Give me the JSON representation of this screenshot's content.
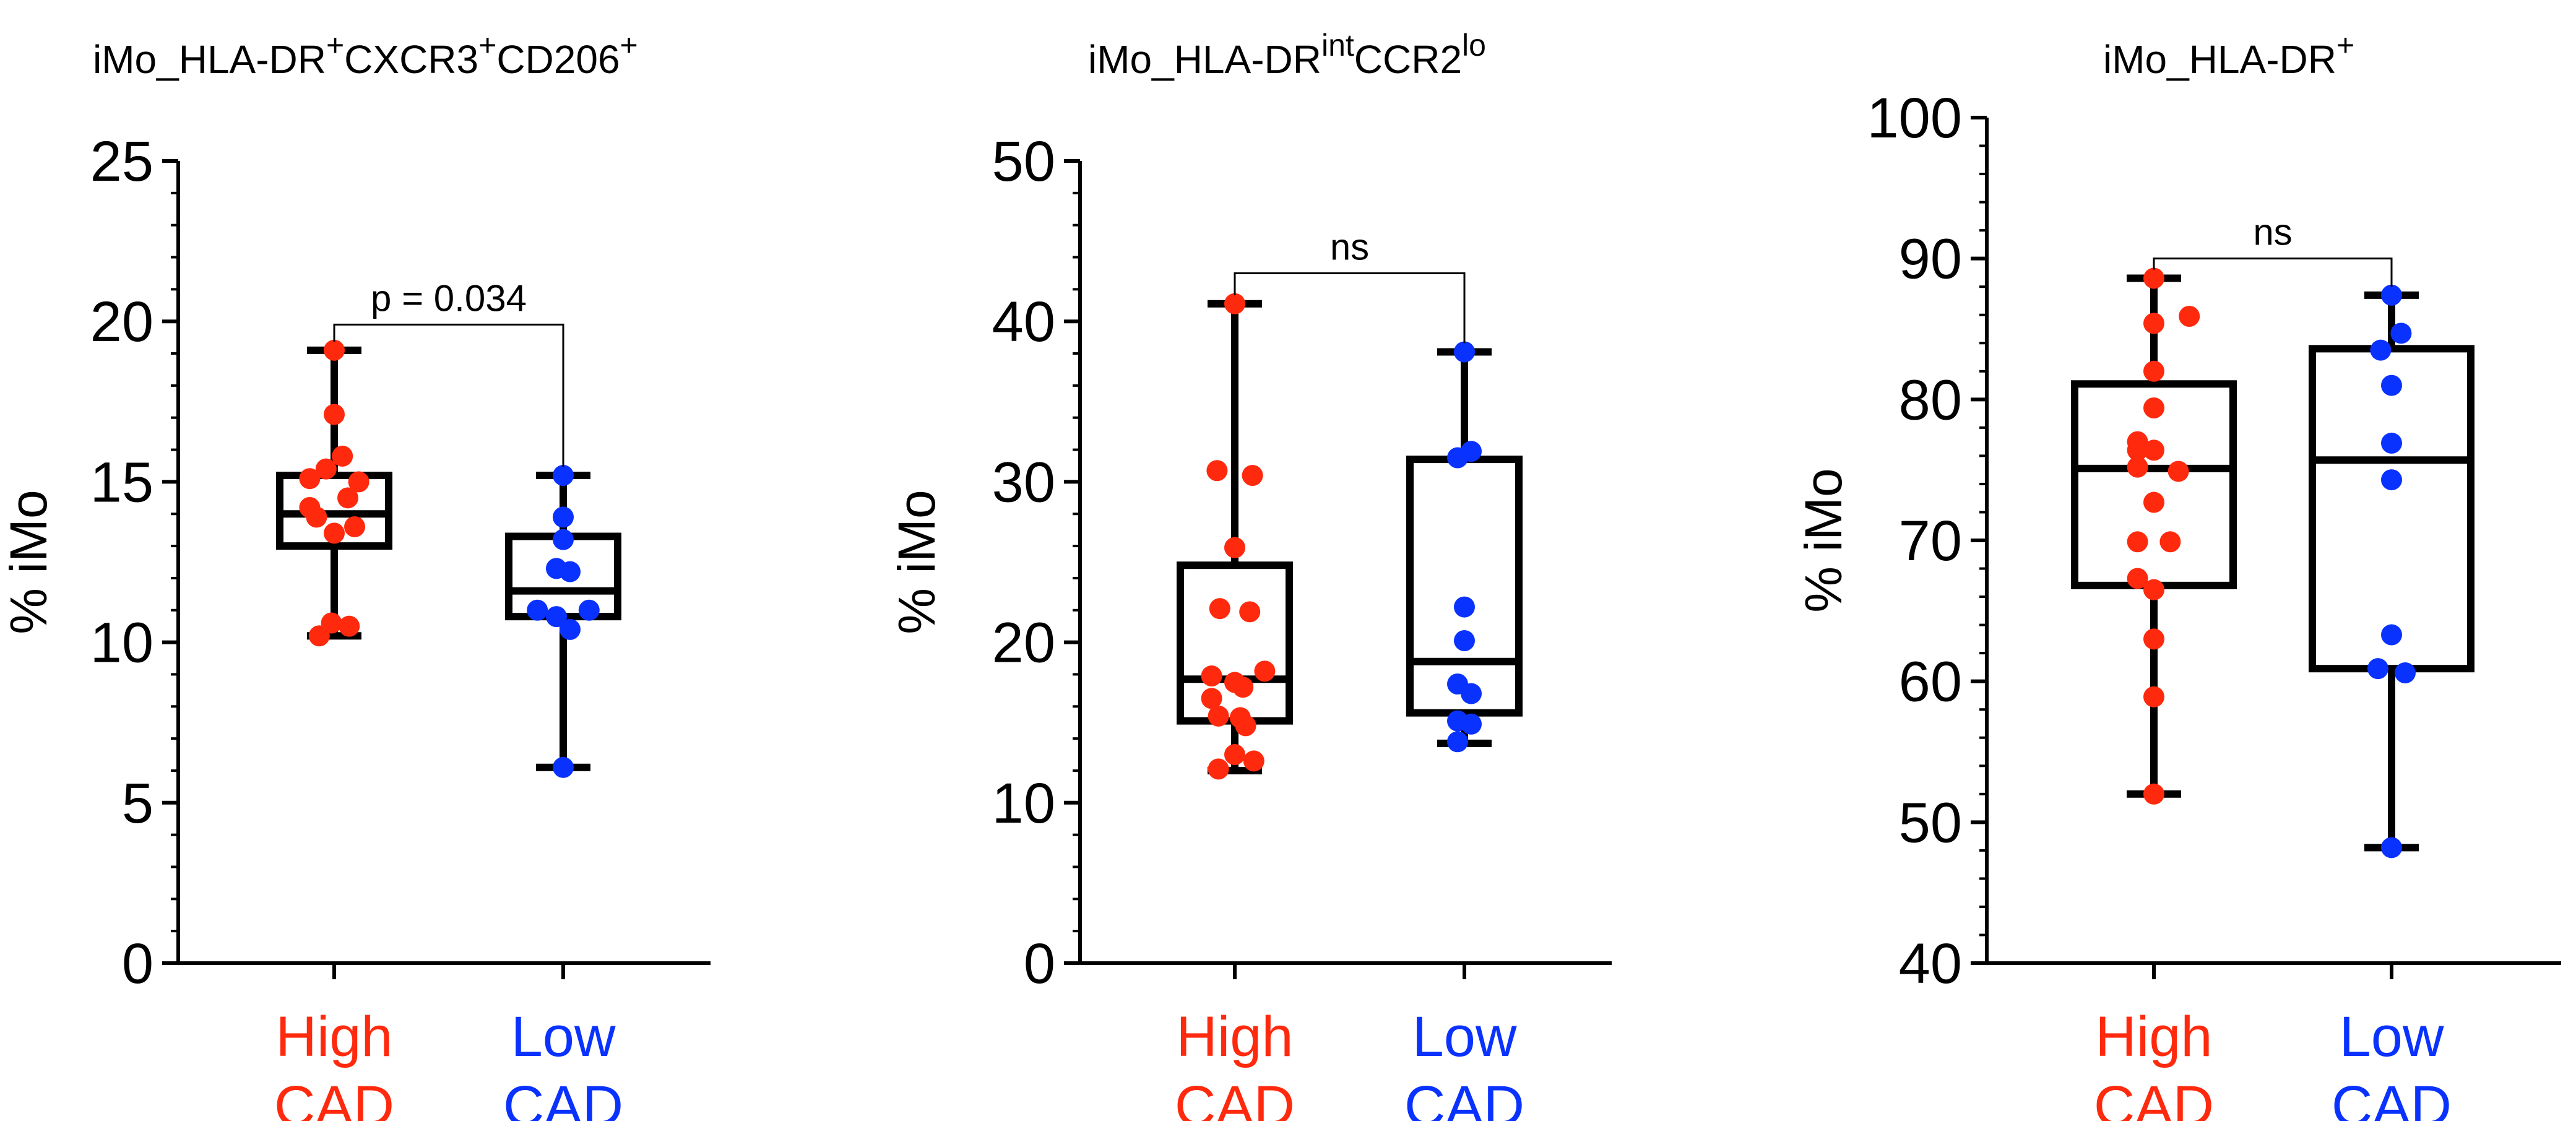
{
  "colors": {
    "high": "#ff2a0e",
    "low": "#0a32ff",
    "axis": "#000000"
  },
  "chart_data": [
    {
      "type": "box",
      "title": {
        "base": "iMo_HLA-DR",
        "parts": [
          {
            "t": "iMo_HLA-DR",
            "sup": false
          },
          {
            "t": "+",
            "sup": true
          },
          {
            "t": "CXCR3",
            "sup": false
          },
          {
            "t": "+",
            "sup": true
          },
          {
            "t": "CD206",
            "sup": false
          },
          {
            "t": "+",
            "sup": true
          }
        ]
      },
      "ylabel": "% iMo",
      "ylim": [
        0,
        25
      ],
      "yticks": [
        0,
        5,
        10,
        15,
        20,
        25
      ],
      "ytick_labels": [
        "0",
        "5",
        "10",
        "15",
        "20",
        "25"
      ],
      "minor_step": 1,
      "categories": [
        {
          "line1": "High",
          "line2": "CAD",
          "color": "high"
        },
        {
          "line1": "Low",
          "line2": "CAD",
          "color": "low"
        }
      ],
      "series": [
        {
          "name": "High CAD",
          "box": {
            "min": 10.2,
            "q1": 13.0,
            "median": 14.0,
            "q3": 15.2,
            "max": 19.1
          },
          "points": [
            [
              -0.36,
              15.1
            ],
            [
              -0.12,
              15.4
            ],
            [
              0.12,
              15.8
            ],
            [
              0.36,
              15.0
            ],
            [
              0.0,
              17.1
            ],
            [
              0.0,
              19.1
            ],
            [
              -0.36,
              14.2
            ],
            [
              0.2,
              14.5
            ],
            [
              -0.26,
              13.9
            ],
            [
              0.3,
              13.6
            ],
            [
              0.0,
              13.4
            ],
            [
              -0.22,
              10.2
            ],
            [
              0.22,
              10.5
            ],
            [
              -0.04,
              10.6
            ]
          ]
        },
        {
          "name": "Low CAD",
          "box": {
            "min": 6.1,
            "q1": 10.8,
            "median": 11.6,
            "q3": 13.3,
            "max": 15.2
          },
          "points": [
            [
              0.0,
              15.2
            ],
            [
              0.0,
              13.9
            ],
            [
              0.0,
              13.2
            ],
            [
              -0.1,
              12.3
            ],
            [
              0.1,
              12.2
            ],
            [
              -0.38,
              11.0
            ],
            [
              0.38,
              11.0
            ],
            [
              -0.1,
              10.8
            ],
            [
              0.1,
              10.4
            ],
            [
              0.0,
              6.1
            ]
          ]
        }
      ],
      "bracket": {
        "label": "p = 0.034",
        "y": 19.9
      }
    },
    {
      "type": "box",
      "title": {
        "base": "iMo_HLA-DR",
        "parts": [
          {
            "t": "iMo_HLA-DR",
            "sup": false
          },
          {
            "t": "int",
            "sup": true
          },
          {
            "t": "CCR2",
            "sup": false
          },
          {
            "t": "lo",
            "sup": true
          }
        ]
      },
      "ylabel": "% iMo",
      "ylim": [
        0,
        50
      ],
      "yticks": [
        0,
        10,
        20,
        30,
        40,
        50
      ],
      "ytick_labels": [
        "0",
        "10",
        "20",
        "30",
        "40",
        "50"
      ],
      "minor_step": 2,
      "categories": [
        {
          "line1": "High",
          "line2": "CAD",
          "color": "high"
        },
        {
          "line1": "Low",
          "line2": "CAD",
          "color": "low"
        }
      ],
      "series": [
        {
          "name": "High CAD",
          "box": {
            "min": 12.0,
            "q1": 15.1,
            "median": 17.7,
            "q3": 24.8,
            "max": 41.1
          },
          "points": [
            [
              0.0,
              41.1
            ],
            [
              -0.26,
              30.7
            ],
            [
              0.26,
              30.4
            ],
            [
              0.0,
              25.9
            ],
            [
              -0.22,
              22.1
            ],
            [
              0.22,
              21.9
            ],
            [
              -0.34,
              17.9
            ],
            [
              0.44,
              18.2
            ],
            [
              0.0,
              17.5
            ],
            [
              -0.34,
              16.5
            ],
            [
              0.12,
              17.2
            ],
            [
              -0.24,
              15.4
            ],
            [
              0.08,
              15.3
            ],
            [
              0.16,
              14.8
            ],
            [
              0.0,
              13.0
            ],
            [
              0.28,
              12.6
            ],
            [
              -0.24,
              12.1
            ]
          ]
        },
        {
          "name": "Low CAD",
          "box": {
            "min": 13.7,
            "q1": 15.6,
            "median": 18.8,
            "q3": 31.4,
            "max": 38.1
          },
          "points": [
            [
              0.0,
              38.1
            ],
            [
              -0.1,
              31.5
            ],
            [
              0.1,
              31.9
            ],
            [
              0.0,
              22.2
            ],
            [
              0.0,
              20.1
            ],
            [
              -0.1,
              17.4
            ],
            [
              0.1,
              16.8
            ],
            [
              -0.1,
              15.1
            ],
            [
              0.1,
              14.9
            ],
            [
              -0.1,
              13.8
            ]
          ]
        }
      ],
      "bracket": {
        "label": "ns",
        "y": 43.0
      }
    },
    {
      "type": "box",
      "title": {
        "base": "iMo_HLA-DR",
        "parts": [
          {
            "t": "iMo_HLA-DR",
            "sup": false
          },
          {
            "t": "+",
            "sup": true
          }
        ]
      },
      "ylabel": "% iMo",
      "ylim": [
        40,
        100
      ],
      "yticks": [
        40,
        50,
        60,
        70,
        80,
        90,
        100
      ],
      "ytick_labels": [
        "40",
        "50",
        "60",
        "70",
        "80",
        "90",
        "100"
      ],
      "minor_step": 2,
      "categories": [
        {
          "line1": "High",
          "line2": "CAD",
          "color": "high"
        },
        {
          "line1": "Low",
          "line2": "CAD",
          "color": "low"
        }
      ],
      "series": [
        {
          "name": "High CAD",
          "box": {
            "min": 52.0,
            "q1": 66.8,
            "median": 75.1,
            "q3": 81.1,
            "max": 88.6
          },
          "points": [
            [
              0.0,
              88.6
            ],
            [
              0.0,
              85.4
            ],
            [
              0.52,
              85.9
            ],
            [
              0.0,
              82.0
            ],
            [
              0.0,
              79.4
            ],
            [
              -0.24,
              77.0
            ],
            [
              -0.24,
              76.4
            ],
            [
              0.0,
              76.4
            ],
            [
              -0.24,
              75.2
            ],
            [
              0.36,
              74.9
            ],
            [
              0.0,
              72.7
            ],
            [
              -0.24,
              69.9
            ],
            [
              0.24,
              69.9
            ],
            [
              -0.24,
              67.3
            ],
            [
              0.0,
              66.5
            ],
            [
              0.0,
              63.0
            ],
            [
              0.0,
              58.9
            ],
            [
              0.0,
              52.0
            ]
          ]
        },
        {
          "name": "Low CAD",
          "box": {
            "min": 48.2,
            "q1": 60.9,
            "median": 75.7,
            "q3": 83.6,
            "max": 87.4
          },
          "points": [
            [
              0.0,
              87.4
            ],
            [
              0.14,
              84.7
            ],
            [
              -0.16,
              83.5
            ],
            [
              0.0,
              81.0
            ],
            [
              0.0,
              76.9
            ],
            [
              0.0,
              74.3
            ],
            [
              0.0,
              63.3
            ],
            [
              -0.2,
              60.9
            ],
            [
              0.2,
              60.6
            ],
            [
              0.0,
              48.2
            ]
          ]
        }
      ],
      "bracket": {
        "label": "ns",
        "y": 90.0
      }
    }
  ]
}
